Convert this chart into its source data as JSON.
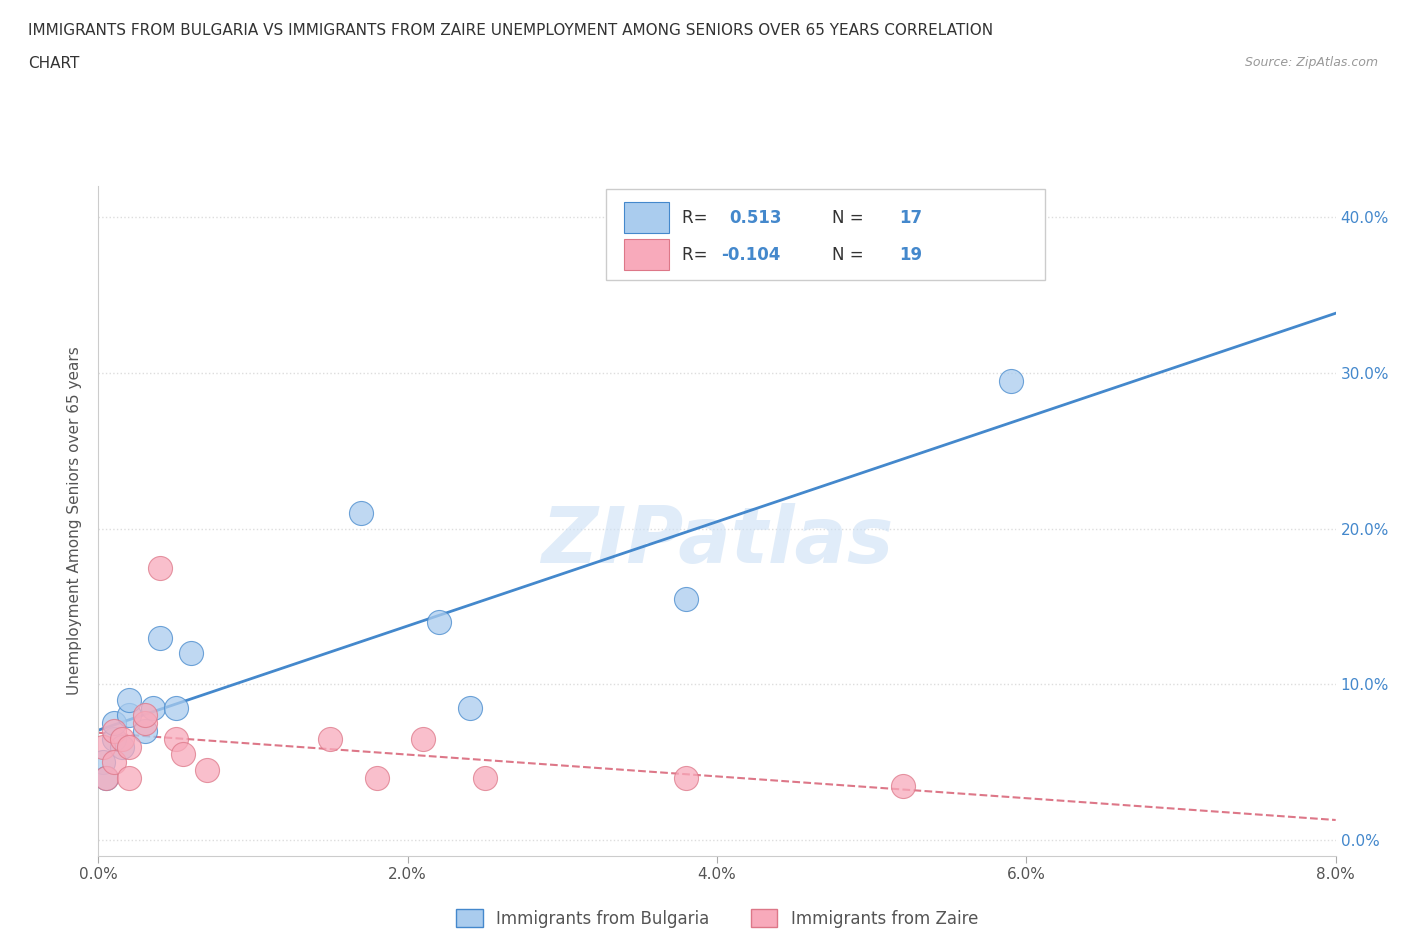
{
  "title_line1": "IMMIGRANTS FROM BULGARIA VS IMMIGRANTS FROM ZAIRE UNEMPLOYMENT AMONG SENIORS OVER 65 YEARS CORRELATION",
  "title_line2": "CHART",
  "source": "Source: ZipAtlas.com",
  "ylabel": "Unemployment Among Seniors over 65 years",
  "r_bulgaria": 0.513,
  "n_bulgaria": 17,
  "r_zaire": -0.104,
  "n_zaire": 19,
  "bulgaria_color": "#aaccee",
  "zaire_color": "#f8aabb",
  "bulgaria_line_color": "#4488cc",
  "zaire_line_color": "#dd7788",
  "watermark_text": "ZIPatlas",
  "xlim": [
    0.0,
    0.08
  ],
  "ylim": [
    -0.01,
    0.42
  ],
  "xticks": [
    0.0,
    0.02,
    0.04,
    0.06,
    0.08
  ],
  "yticks": [
    0.0,
    0.1,
    0.2,
    0.3,
    0.4
  ],
  "bulgaria_x": [
    0.0003,
    0.0005,
    0.001,
    0.001,
    0.0015,
    0.002,
    0.002,
    0.003,
    0.0035,
    0.004,
    0.005,
    0.006,
    0.017,
    0.022,
    0.024,
    0.059,
    0.038
  ],
  "bulgaria_y": [
    0.05,
    0.04,
    0.065,
    0.075,
    0.06,
    0.08,
    0.09,
    0.07,
    0.085,
    0.13,
    0.085,
    0.12,
    0.21,
    0.14,
    0.085,
    0.295,
    0.155
  ],
  "zaire_x": [
    0.0003,
    0.0005,
    0.001,
    0.001,
    0.0015,
    0.002,
    0.002,
    0.003,
    0.003,
    0.004,
    0.005,
    0.0055,
    0.007,
    0.015,
    0.018,
    0.021,
    0.025,
    0.038,
    0.052
  ],
  "zaire_y": [
    0.06,
    0.04,
    0.05,
    0.07,
    0.065,
    0.06,
    0.04,
    0.075,
    0.08,
    0.175,
    0.065,
    0.055,
    0.045,
    0.065,
    0.04,
    0.065,
    0.04,
    0.04,
    0.035
  ],
  "background_color": "#ffffff",
  "grid_color": "#dddddd",
  "right_tick_color": "#4488cc",
  "left_tick_color": "#888888"
}
